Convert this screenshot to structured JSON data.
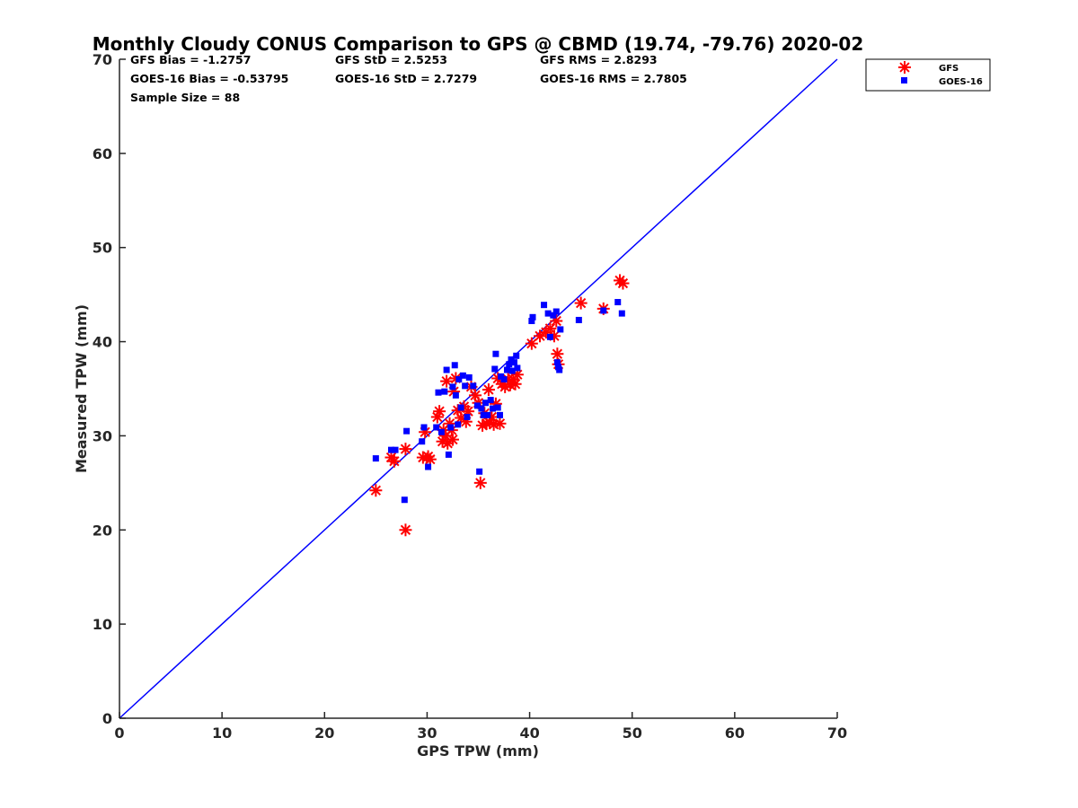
{
  "chart_data": {
    "type": "scatter",
    "title": "Monthly Cloudy CONUS Comparison to GPS @ CBMD (19.74, -79.76) 2020-02",
    "xlabel": "GPS TPW (mm)",
    "ylabel": "Measured TPW (mm)",
    "xlim": [
      0,
      70
    ],
    "ylim": [
      0,
      70
    ],
    "xticks": [
      "0",
      "10",
      "20",
      "30",
      "40",
      "50",
      "60",
      "70"
    ],
    "yticks": [
      "0",
      "10",
      "20",
      "30",
      "40",
      "50",
      "60",
      "70"
    ],
    "grid": false,
    "legend_position": "outside-top-right",
    "stats": [
      [
        "GFS Bias = -1.2757",
        "GFS StD = 2.5253",
        "GFS RMS = 2.8293"
      ],
      [
        "GOES-16 Bias = -0.53795",
        "GOES-16 StD = 2.7279",
        "GOES-16 RMS = 2.7805"
      ],
      [
        "Sample Size = 88"
      ]
    ],
    "reference_line": {
      "x": [
        0,
        70
      ],
      "y": [
        0,
        70
      ],
      "color": "#0000ff"
    },
    "series": [
      {
        "name": "GFS",
        "marker": "asterisk",
        "color": "#ff0000",
        "points": [
          [
            25.0,
            24.2
          ],
          [
            26.5,
            27.7
          ],
          [
            26.8,
            27.3
          ],
          [
            27.9,
            28.6
          ],
          [
            27.9,
            20.0
          ],
          [
            29.6,
            27.7
          ],
          [
            29.8,
            30.4
          ],
          [
            30.1,
            27.8
          ],
          [
            30.3,
            27.5
          ],
          [
            31.0,
            32.0
          ],
          [
            31.2,
            32.6
          ],
          [
            31.5,
            29.4
          ],
          [
            31.6,
            30.6
          ],
          [
            31.8,
            30.0
          ],
          [
            31.9,
            35.8
          ],
          [
            32.0,
            29.2
          ],
          [
            32.2,
            31.3
          ],
          [
            32.4,
            30.6
          ],
          [
            32.5,
            29.6
          ],
          [
            32.6,
            34.7
          ],
          [
            32.8,
            36.1
          ],
          [
            33.0,
            32.7
          ],
          [
            33.3,
            31.9
          ],
          [
            33.6,
            33.1
          ],
          [
            33.8,
            31.5
          ],
          [
            34.0,
            32.6
          ],
          [
            34.3,
            35.2
          ],
          [
            34.7,
            34.3
          ],
          [
            35.0,
            33.5
          ],
          [
            35.2,
            25.0
          ],
          [
            35.4,
            31.1
          ],
          [
            35.6,
            32.4
          ],
          [
            35.8,
            31.3
          ],
          [
            36.0,
            34.9
          ],
          [
            36.1,
            31.4
          ],
          [
            36.3,
            32.0
          ],
          [
            36.5,
            31.2
          ],
          [
            36.7,
            33.4
          ],
          [
            36.9,
            36.1
          ],
          [
            37.1,
            31.3
          ],
          [
            37.3,
            35.5
          ],
          [
            37.6,
            35.2
          ],
          [
            37.9,
            36.0
          ],
          [
            38.1,
            35.4
          ],
          [
            38.4,
            36.0
          ],
          [
            38.6,
            35.5
          ],
          [
            38.8,
            36.5
          ],
          [
            40.2,
            39.8
          ],
          [
            41.0,
            40.6
          ],
          [
            41.6,
            41.0
          ],
          [
            42.0,
            41.4
          ],
          [
            42.4,
            40.6
          ],
          [
            42.6,
            42.2
          ],
          [
            42.7,
            38.7
          ],
          [
            42.8,
            37.6
          ],
          [
            45.0,
            44.1
          ],
          [
            47.2,
            43.5
          ],
          [
            48.8,
            46.5
          ],
          [
            49.1,
            46.2
          ]
        ]
      },
      {
        "name": "GOES-16",
        "marker": "square",
        "color": "#0000ff",
        "points": [
          [
            25.0,
            27.6
          ],
          [
            26.5,
            28.5
          ],
          [
            26.9,
            28.5
          ],
          [
            27.8,
            23.2
          ],
          [
            28.0,
            30.5
          ],
          [
            29.5,
            29.4
          ],
          [
            29.7,
            30.9
          ],
          [
            30.1,
            26.7
          ],
          [
            30.9,
            30.9
          ],
          [
            31.1,
            34.6
          ],
          [
            31.4,
            30.4
          ],
          [
            31.7,
            34.7
          ],
          [
            31.9,
            37.0
          ],
          [
            32.1,
            28.0
          ],
          [
            32.3,
            30.9
          ],
          [
            32.5,
            35.2
          ],
          [
            32.7,
            37.5
          ],
          [
            32.8,
            34.3
          ],
          [
            33.0,
            31.2
          ],
          [
            33.1,
            36.0
          ],
          [
            33.3,
            33.0
          ],
          [
            33.5,
            36.4
          ],
          [
            33.7,
            35.3
          ],
          [
            33.9,
            32.0
          ],
          [
            34.1,
            36.2
          ],
          [
            34.5,
            35.3
          ],
          [
            34.9,
            33.2
          ],
          [
            35.1,
            26.2
          ],
          [
            35.3,
            32.9
          ],
          [
            35.5,
            32.2
          ],
          [
            35.7,
            33.5
          ],
          [
            35.9,
            32.2
          ],
          [
            36.2,
            33.8
          ],
          [
            36.4,
            32.9
          ],
          [
            36.6,
            37.1
          ],
          [
            36.7,
            38.7
          ],
          [
            36.9,
            33.0
          ],
          [
            37.1,
            32.2
          ],
          [
            37.2,
            36.3
          ],
          [
            37.5,
            36.0
          ],
          [
            37.8,
            37.0
          ],
          [
            38.0,
            37.6
          ],
          [
            38.2,
            38.1
          ],
          [
            38.3,
            36.9
          ],
          [
            38.5,
            37.8
          ],
          [
            38.7,
            38.5
          ],
          [
            38.8,
            37.2
          ],
          [
            40.2,
            42.2
          ],
          [
            40.3,
            42.6
          ],
          [
            41.4,
            43.9
          ],
          [
            41.8,
            43.0
          ],
          [
            42.0,
            40.5
          ],
          [
            42.3,
            42.8
          ],
          [
            42.6,
            43.2
          ],
          [
            42.7,
            37.8
          ],
          [
            42.8,
            37.3
          ],
          [
            42.9,
            37.0
          ],
          [
            43.0,
            41.3
          ],
          [
            44.8,
            42.3
          ],
          [
            47.2,
            43.3
          ],
          [
            48.6,
            44.2
          ],
          [
            49.0,
            43.0
          ]
        ]
      }
    ]
  }
}
